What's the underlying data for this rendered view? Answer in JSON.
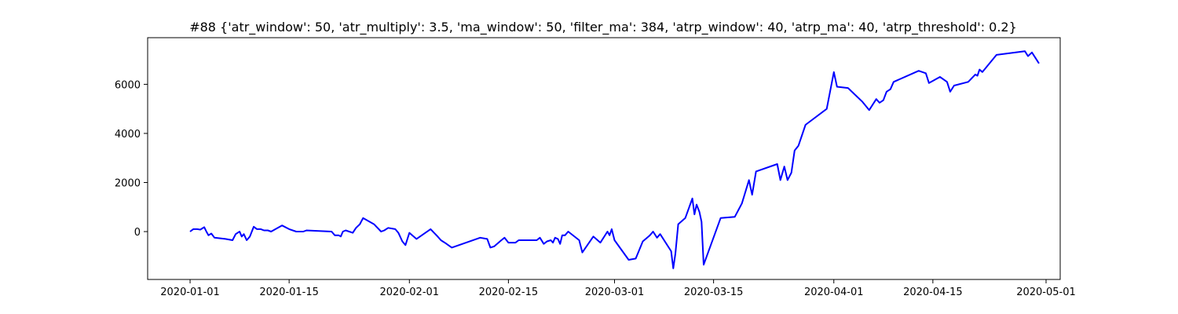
{
  "chart_data": {
    "type": "line",
    "title": "#88 {'atr_window': 50, 'atr_multiply': 3.5, 'ma_window': 50, 'filter_ma': 384, 'atrp_window': 40, 'atrp_ma': 40, 'atrp_threshold': 0.2}",
    "xlabel": "",
    "ylabel": "",
    "grid": false,
    "line_color": "#0000ff",
    "xlim": [
      "2019-12-26",
      "2020-05-03"
    ],
    "ylim": [
      -1950,
      7900
    ],
    "x_ticks": [
      "2020-01-01",
      "2020-01-15",
      "2020-02-01",
      "2020-02-15",
      "2020-03-01",
      "2020-03-15",
      "2020-04-01",
      "2020-04-15",
      "2020-05-01"
    ],
    "y_ticks": [
      0,
      2000,
      4000,
      6000
    ],
    "y_tick_labels": [
      "0",
      "2000",
      "4000",
      "6000"
    ],
    "series": [
      {
        "points": [
          [
            "2020-01-01",
            0
          ],
          [
            "2020-01-01",
            100
          ],
          [
            "2020-01-02",
            100
          ],
          [
            "2020-01-02",
            80
          ],
          [
            "2020-01-03",
            180
          ],
          [
            "2020-01-03",
            0
          ],
          [
            "2020-01-03",
            -150
          ],
          [
            "2020-01-04",
            -80
          ],
          [
            "2020-01-04",
            -250
          ],
          [
            "2020-01-06",
            -300
          ],
          [
            "2020-01-07",
            -350
          ],
          [
            "2020-01-07",
            -100
          ],
          [
            "2020-01-08",
            0
          ],
          [
            "2020-01-08",
            -200
          ],
          [
            "2020-01-08",
            -100
          ],
          [
            "2020-01-09",
            -350
          ],
          [
            "2020-01-09",
            -200
          ],
          [
            "2020-01-10",
            200
          ],
          [
            "2020-01-10",
            100
          ],
          [
            "2020-01-11",
            100
          ],
          [
            "2020-01-11",
            50
          ],
          [
            "2020-01-12",
            50
          ],
          [
            "2020-01-12",
            0
          ],
          [
            "2020-01-14",
            250
          ],
          [
            "2020-01-15",
            100
          ],
          [
            "2020-01-16",
            0
          ],
          [
            "2020-01-17",
            0
          ],
          [
            "2020-01-17",
            50
          ],
          [
            "2020-01-21",
            0
          ],
          [
            "2020-01-21",
            -150
          ],
          [
            "2020-01-22",
            -150
          ],
          [
            "2020-01-22",
            -200
          ],
          [
            "2020-01-22",
            0
          ],
          [
            "2020-01-23",
            50
          ],
          [
            "2020-01-24",
            -50
          ],
          [
            "2020-01-24",
            150
          ],
          [
            "2020-01-25",
            300
          ],
          [
            "2020-01-25",
            550
          ],
          [
            "2020-01-27",
            300
          ],
          [
            "2020-01-28",
            0
          ],
          [
            "2020-01-28",
            50
          ],
          [
            "2020-01-29",
            150
          ],
          [
            "2020-01-30",
            100
          ],
          [
            "2020-01-30",
            -50
          ],
          [
            "2020-01-31",
            -400
          ],
          [
            "2020-01-31",
            -550
          ],
          [
            "2020-02-01",
            -50
          ],
          [
            "2020-02-02",
            -300
          ],
          [
            "2020-02-04",
            100
          ],
          [
            "2020-02-05",
            -200
          ],
          [
            "2020-02-05",
            -350
          ],
          [
            "2020-02-06",
            -450
          ],
          [
            "2020-02-07",
            -650
          ],
          [
            "2020-02-11",
            -250
          ],
          [
            "2020-02-12",
            -300
          ],
          [
            "2020-02-12",
            -650
          ],
          [
            "2020-02-13",
            -600
          ],
          [
            "2020-02-14",
            -350
          ],
          [
            "2020-02-14",
            -250
          ],
          [
            "2020-02-15",
            -450
          ],
          [
            "2020-02-16",
            -450
          ],
          [
            "2020-02-16",
            -350
          ],
          [
            "2020-02-19",
            -350
          ],
          [
            "2020-02-19",
            -250
          ],
          [
            "2020-02-20",
            -500
          ],
          [
            "2020-02-20",
            -400
          ],
          [
            "2020-02-21",
            -350
          ],
          [
            "2020-02-21",
            -450
          ],
          [
            "2020-02-21",
            -250
          ],
          [
            "2020-02-22",
            -300
          ],
          [
            "2020-02-22",
            -500
          ],
          [
            "2020-02-22",
            -150
          ],
          [
            "2020-02-23",
            -150
          ],
          [
            "2020-02-23",
            0
          ],
          [
            "2020-02-25",
            -350
          ],
          [
            "2020-02-25",
            -850
          ],
          [
            "2020-02-27",
            -200
          ],
          [
            "2020-02-28",
            -450
          ],
          [
            "2020-02-29",
            0
          ],
          [
            "2020-02-29",
            -150
          ],
          [
            "2020-02-29",
            100
          ],
          [
            "2020-03-01",
            -350
          ],
          [
            "2020-03-03",
            -1150
          ],
          [
            "2020-03-04",
            -1100
          ],
          [
            "2020-03-05",
            -400
          ],
          [
            "2020-03-06",
            -150
          ],
          [
            "2020-03-06",
            0
          ],
          [
            "2020-03-07",
            -250
          ],
          [
            "2020-03-07",
            -100
          ],
          [
            "2020-03-09",
            -800
          ],
          [
            "2020-03-09",
            -1500
          ],
          [
            "2020-03-09",
            -900
          ],
          [
            "2020-03-10",
            300
          ],
          [
            "2020-03-11",
            550
          ],
          [
            "2020-03-12",
            1350
          ],
          [
            "2020-03-12",
            700
          ],
          [
            "2020-03-12",
            1100
          ],
          [
            "2020-03-13",
            800
          ],
          [
            "2020-03-13",
            400
          ],
          [
            "2020-03-13",
            -1350
          ],
          [
            "2020-03-16",
            550
          ],
          [
            "2020-03-18",
            600
          ],
          [
            "2020-03-19",
            1150
          ],
          [
            "2020-03-20",
            2100
          ],
          [
            "2020-03-20",
            1500
          ],
          [
            "2020-03-21",
            2450
          ],
          [
            "2020-03-24",
            2750
          ],
          [
            "2020-03-24",
            2100
          ],
          [
            "2020-03-25",
            2650
          ],
          [
            "2020-03-25",
            2100
          ],
          [
            "2020-03-26",
            2400
          ],
          [
            "2020-03-26",
            3300
          ],
          [
            "2020-03-27",
            3500
          ],
          [
            "2020-03-28",
            4350
          ],
          [
            "2020-03-31",
            5000
          ],
          [
            "2020-04-01",
            6500
          ],
          [
            "2020-04-01",
            5900
          ],
          [
            "2020-04-03",
            5850
          ],
          [
            "2020-04-05",
            5300
          ],
          [
            "2020-04-06",
            4950
          ],
          [
            "2020-04-07",
            5400
          ],
          [
            "2020-04-07",
            5250
          ],
          [
            "2020-04-08",
            5350
          ],
          [
            "2020-04-08",
            5700
          ],
          [
            "2020-04-09",
            5800
          ],
          [
            "2020-04-09",
            6100
          ],
          [
            "2020-04-13",
            6550
          ],
          [
            "2020-04-14",
            6450
          ],
          [
            "2020-04-14",
            6050
          ],
          [
            "2020-04-16",
            6300
          ],
          [
            "2020-04-17",
            6100
          ],
          [
            "2020-04-17",
            5700
          ],
          [
            "2020-04-18",
            5950
          ],
          [
            "2020-04-20",
            6100
          ],
          [
            "2020-04-21",
            6400
          ],
          [
            "2020-04-21",
            6350
          ],
          [
            "2020-04-21",
            6600
          ],
          [
            "2020-04-22",
            6500
          ],
          [
            "2020-04-24",
            7200
          ],
          [
            "2020-04-28",
            7350
          ],
          [
            "2020-04-28",
            7150
          ],
          [
            "2020-04-29",
            7300
          ],
          [
            "2020-04-30",
            6850
          ]
        ]
      }
    ]
  }
}
